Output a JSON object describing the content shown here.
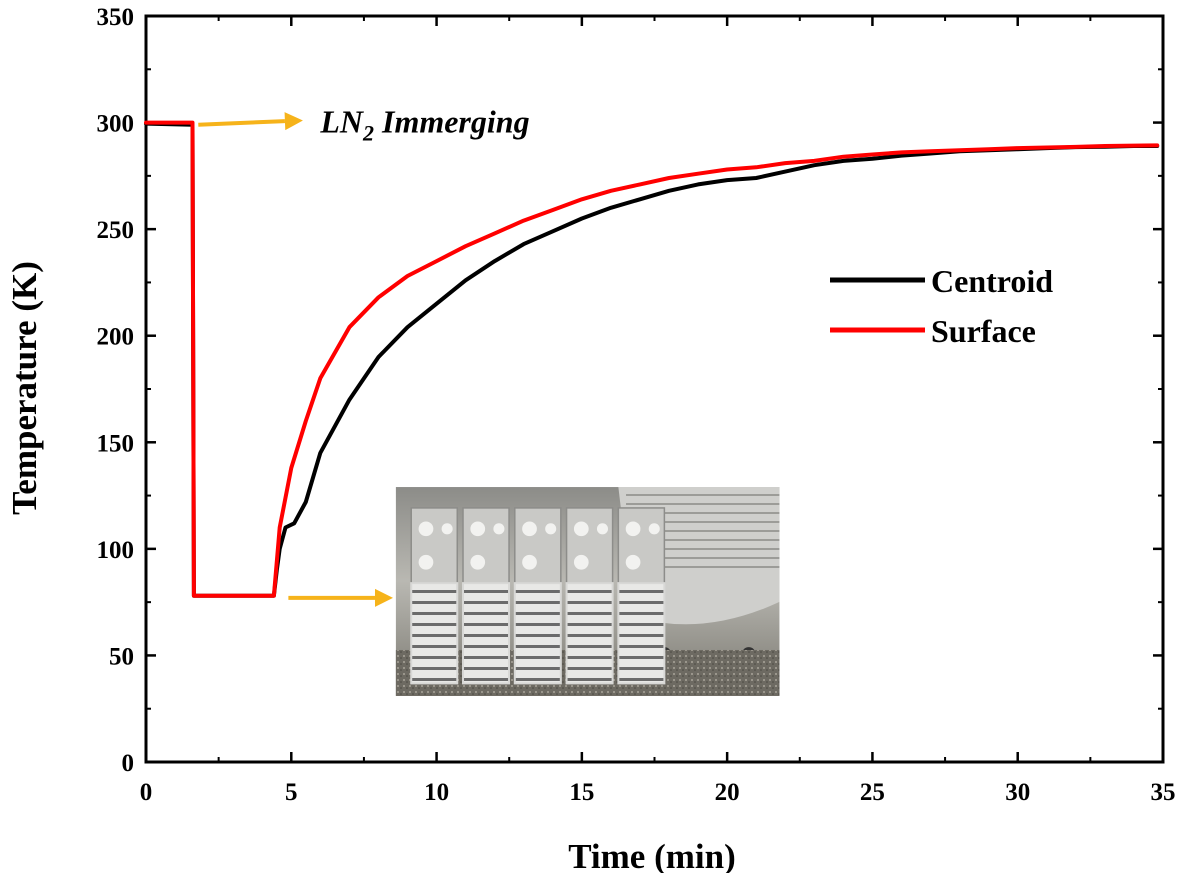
{
  "chart_data": {
    "type": "line",
    "title": "",
    "xlabel": "Time (min)",
    "ylabel": "Temperature (K)",
    "xlim": [
      0,
      35
    ],
    "ylim": [
      0,
      350
    ],
    "xticks": [
      0,
      5,
      10,
      15,
      20,
      25,
      30,
      35
    ],
    "yticks": [
      0,
      50,
      100,
      150,
      200,
      250,
      300,
      350
    ],
    "grid": false,
    "legend": {
      "placement": "right-middle"
    },
    "series": [
      {
        "name": "Centroid",
        "color": "#000000",
        "points": [
          [
            0,
            299.5
          ],
          [
            1.6,
            299
          ],
          [
            1.65,
            78
          ],
          [
            4.4,
            78
          ],
          [
            4.5,
            90
          ],
          [
            4.6,
            100
          ],
          [
            4.8,
            110
          ],
          [
            5.1,
            112
          ],
          [
            5.5,
            122
          ],
          [
            6,
            145
          ],
          [
            7,
            170
          ],
          [
            8,
            190
          ],
          [
            9,
            204
          ],
          [
            10,
            215
          ],
          [
            11,
            226
          ],
          [
            12,
            235
          ],
          [
            13,
            243
          ],
          [
            14,
            249
          ],
          [
            15,
            255
          ],
          [
            16,
            260
          ],
          [
            17,
            264
          ],
          [
            18,
            268
          ],
          [
            19,
            271
          ],
          [
            20,
            273
          ],
          [
            21,
            274
          ],
          [
            22,
            277
          ],
          [
            23,
            280
          ],
          [
            24,
            282
          ],
          [
            25,
            283
          ],
          [
            26,
            284.5
          ],
          [
            27,
            285.5
          ],
          [
            28,
            286.5
          ],
          [
            29,
            287
          ],
          [
            30,
            287.5
          ],
          [
            31,
            288
          ],
          [
            32,
            288.5
          ],
          [
            33,
            288.7
          ],
          [
            34,
            289
          ],
          [
            34.8,
            289
          ]
        ]
      },
      {
        "name": "Surface",
        "color": "#ff0000",
        "points": [
          [
            0,
            300
          ],
          [
            1.6,
            300
          ],
          [
            1.65,
            78
          ],
          [
            4.4,
            78
          ],
          [
            4.6,
            110
          ],
          [
            5,
            138
          ],
          [
            5.5,
            160
          ],
          [
            6,
            180
          ],
          [
            7,
            204
          ],
          [
            8,
            218
          ],
          [
            9,
            228
          ],
          [
            10,
            235
          ],
          [
            11,
            242
          ],
          [
            12,
            248
          ],
          [
            13,
            254
          ],
          [
            14,
            259
          ],
          [
            15,
            264
          ],
          [
            16,
            268
          ],
          [
            17,
            271
          ],
          [
            18,
            274
          ],
          [
            19,
            276
          ],
          [
            20,
            278
          ],
          [
            21,
            279
          ],
          [
            22,
            281
          ],
          [
            23,
            282
          ],
          [
            24,
            284
          ],
          [
            25,
            285
          ],
          [
            26,
            286
          ],
          [
            27,
            286.5
          ],
          [
            28,
            287
          ],
          [
            29,
            287.5
          ],
          [
            30,
            288
          ],
          [
            31,
            288.3
          ],
          [
            32,
            288.6
          ],
          [
            33,
            289
          ],
          [
            34,
            289.2
          ],
          [
            34.8,
            289.3
          ]
        ]
      }
    ],
    "annotations": [
      {
        "text_main": "LN",
        "text_sub": "2",
        "text_rest": " Immerging",
        "arrow_from": [
          1.8,
          299
        ],
        "arrow_to": [
          5.4,
          301
        ],
        "text_at": [
          6,
          300
        ]
      },
      {
        "arrow_from": [
          4.9,
          77
        ],
        "arrow_to": [
          8.5,
          77
        ]
      }
    ],
    "arrow_color": "#f6b31a",
    "inset_photo": {
      "description_hidden": true,
      "x_range": [
        8.6,
        21.8
      ],
      "y_range": [
        31,
        129
      ]
    }
  }
}
